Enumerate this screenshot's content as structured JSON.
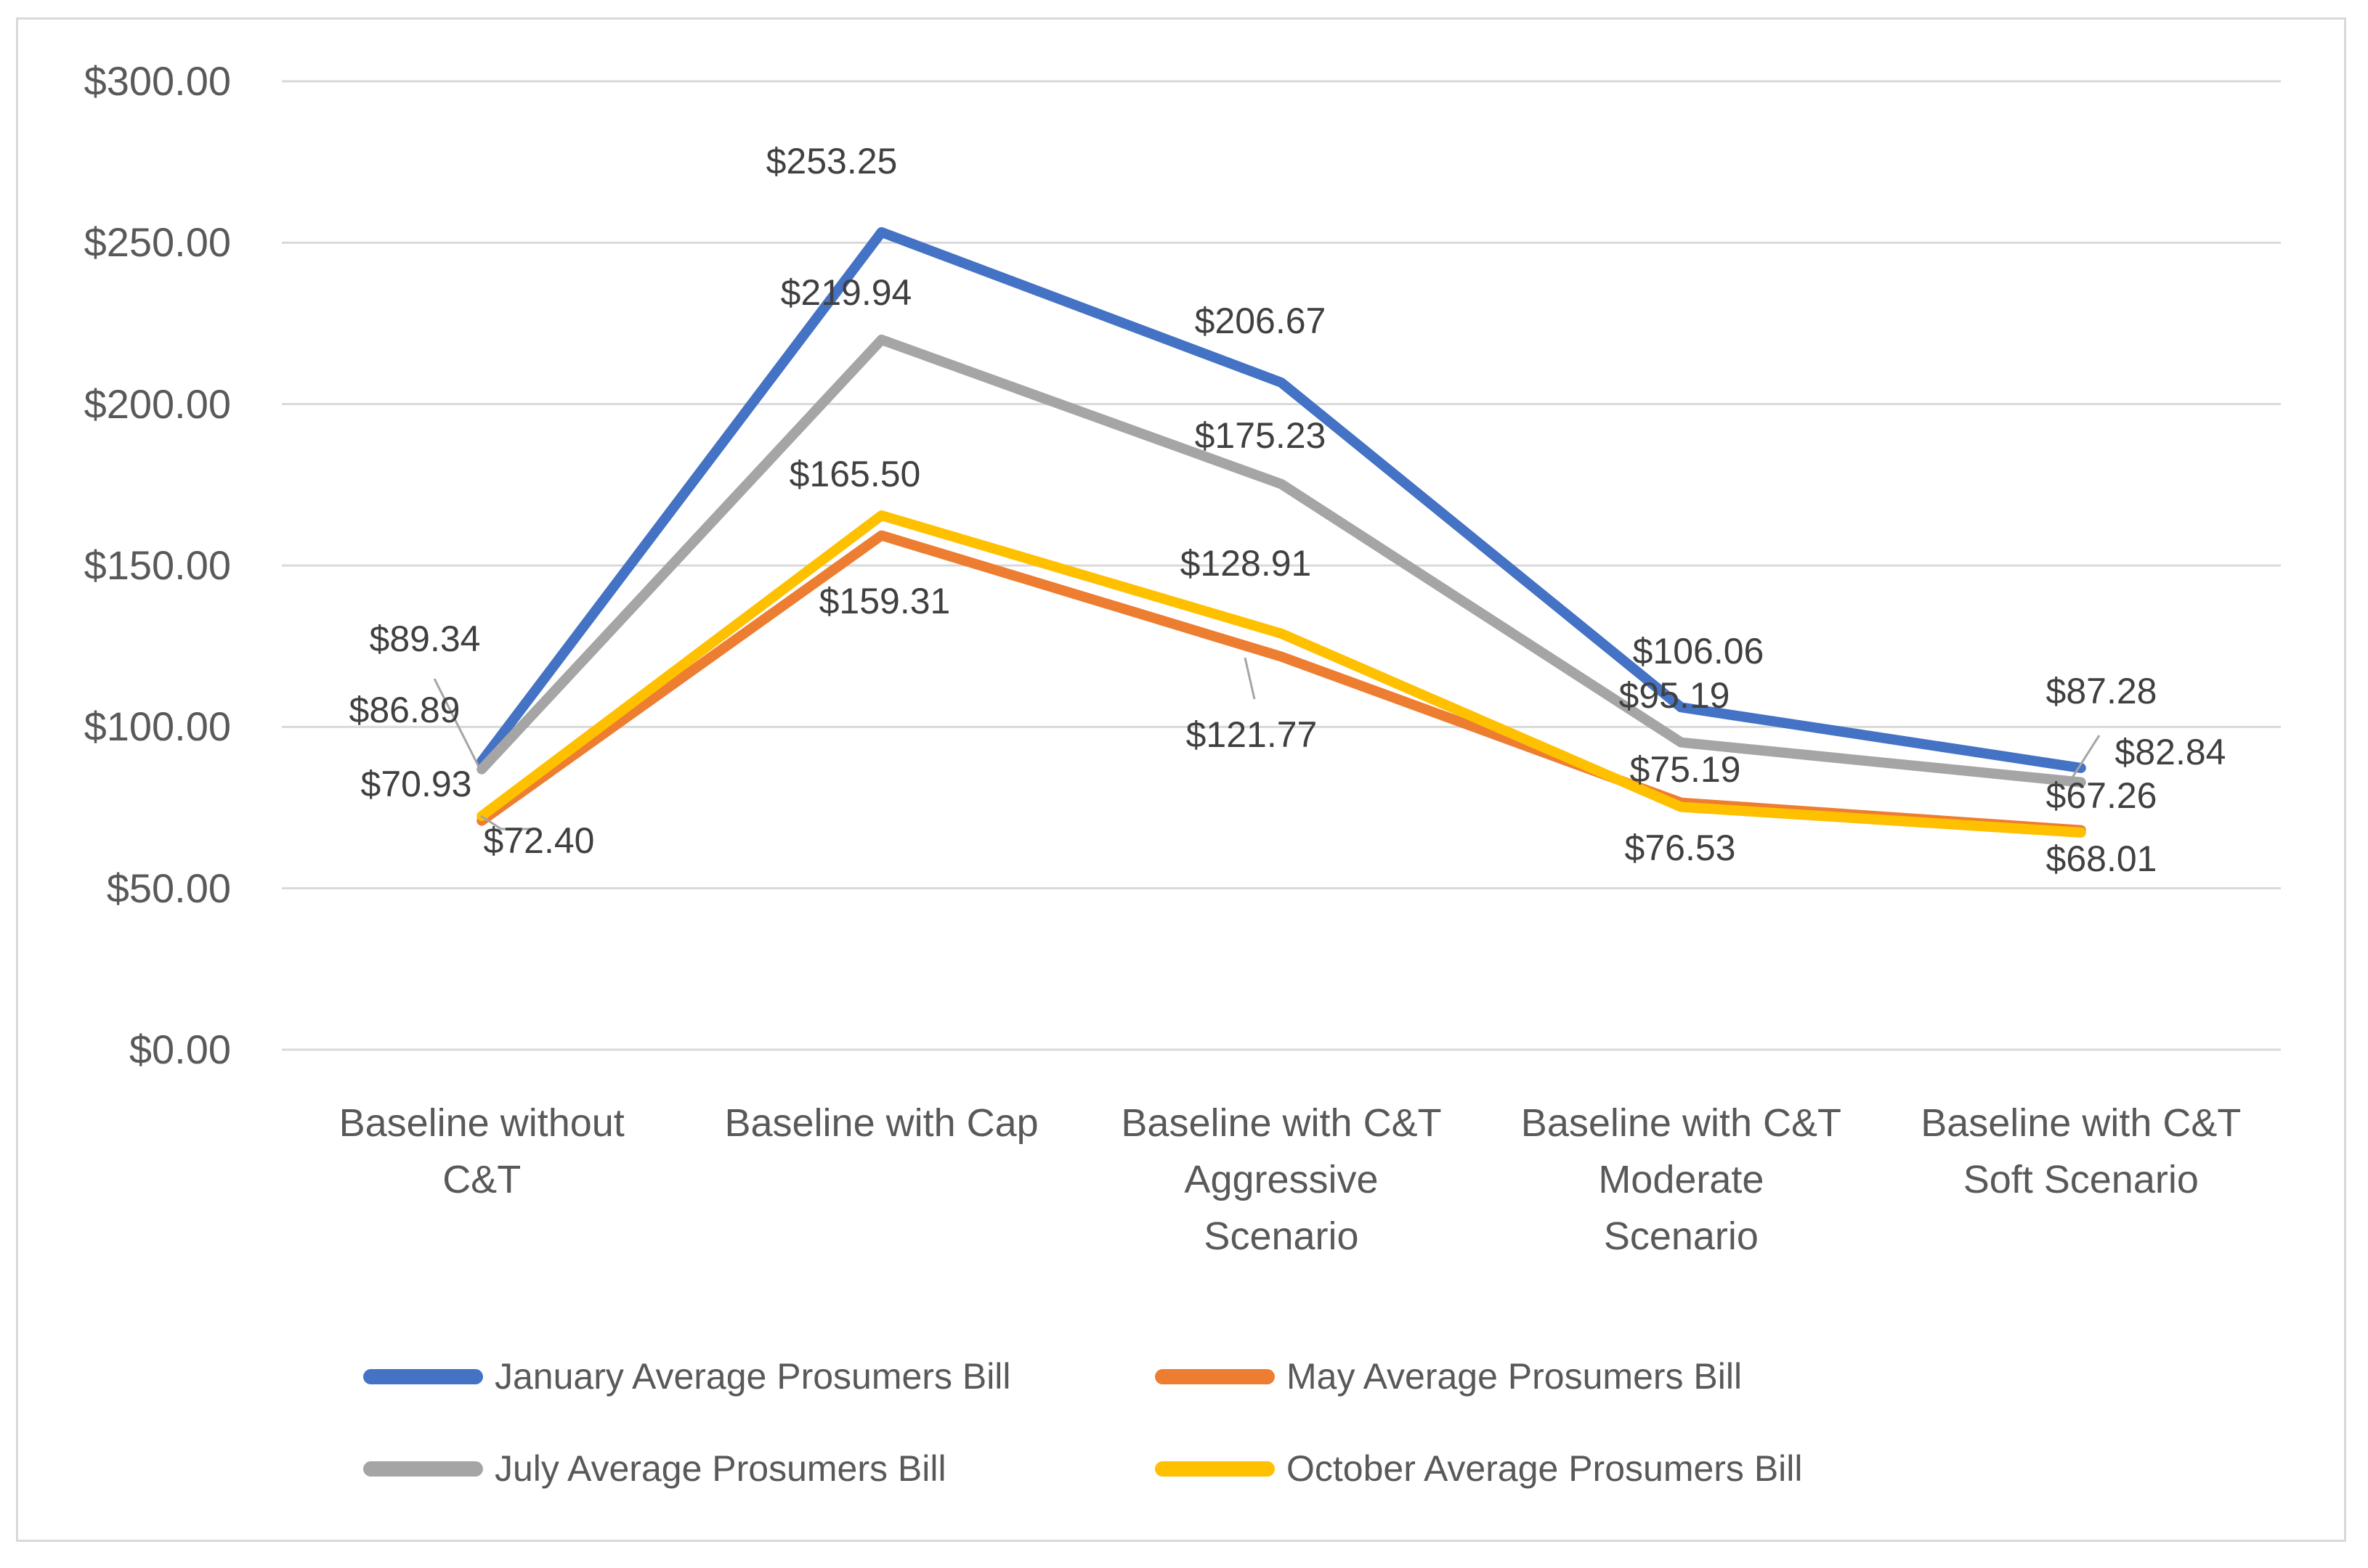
{
  "chart_data": {
    "type": "line",
    "categories": [
      "Baseline without\nC&T",
      "Baseline with Cap",
      "Baseline with C&T\nAggressive\nScenario",
      "Baseline with C&T\nModerate\nScenario",
      "Baseline with C&T\nSoft Scenario"
    ],
    "series": [
      {
        "name": "January Average Prosumers Bill",
        "color": "#4472C4",
        "values": [
          89.34,
          253.25,
          206.67,
          106.06,
          87.28
        ]
      },
      {
        "name": "May Average Prosumers Bill",
        "color": "#ED7D31",
        "values": [
          70.93,
          159.31,
          121.77,
          76.53,
          68.01
        ]
      },
      {
        "name": "July Average Prosumers Bill",
        "color": "#A5A5A5",
        "values": [
          86.89,
          219.94,
          175.23,
          95.19,
          82.84
        ]
      },
      {
        "name": "October Average Prosumers Bill",
        "color": "#FFC000",
        "values": [
          72.4,
          165.5,
          128.91,
          75.19,
          67.26
        ]
      }
    ],
    "data_label_format": "$0.00",
    "ylim": [
      0,
      300
    ],
    "ytick_step": 50,
    "ytick_labels": [
      "$300.00",
      "$250.00",
      "$200.00",
      "$150.00",
      "$100.00",
      "$50.00",
      "$0.00"
    ],
    "grid": true,
    "legend_position": "bottom"
  },
  "colors": {
    "gridline": "#D9D9D9",
    "chart_border": "#D9D9D9",
    "axis_text": "#595959",
    "data_label_text": "#404040",
    "leader_line": "#A5A5A5",
    "background": "#FFFFFF"
  }
}
